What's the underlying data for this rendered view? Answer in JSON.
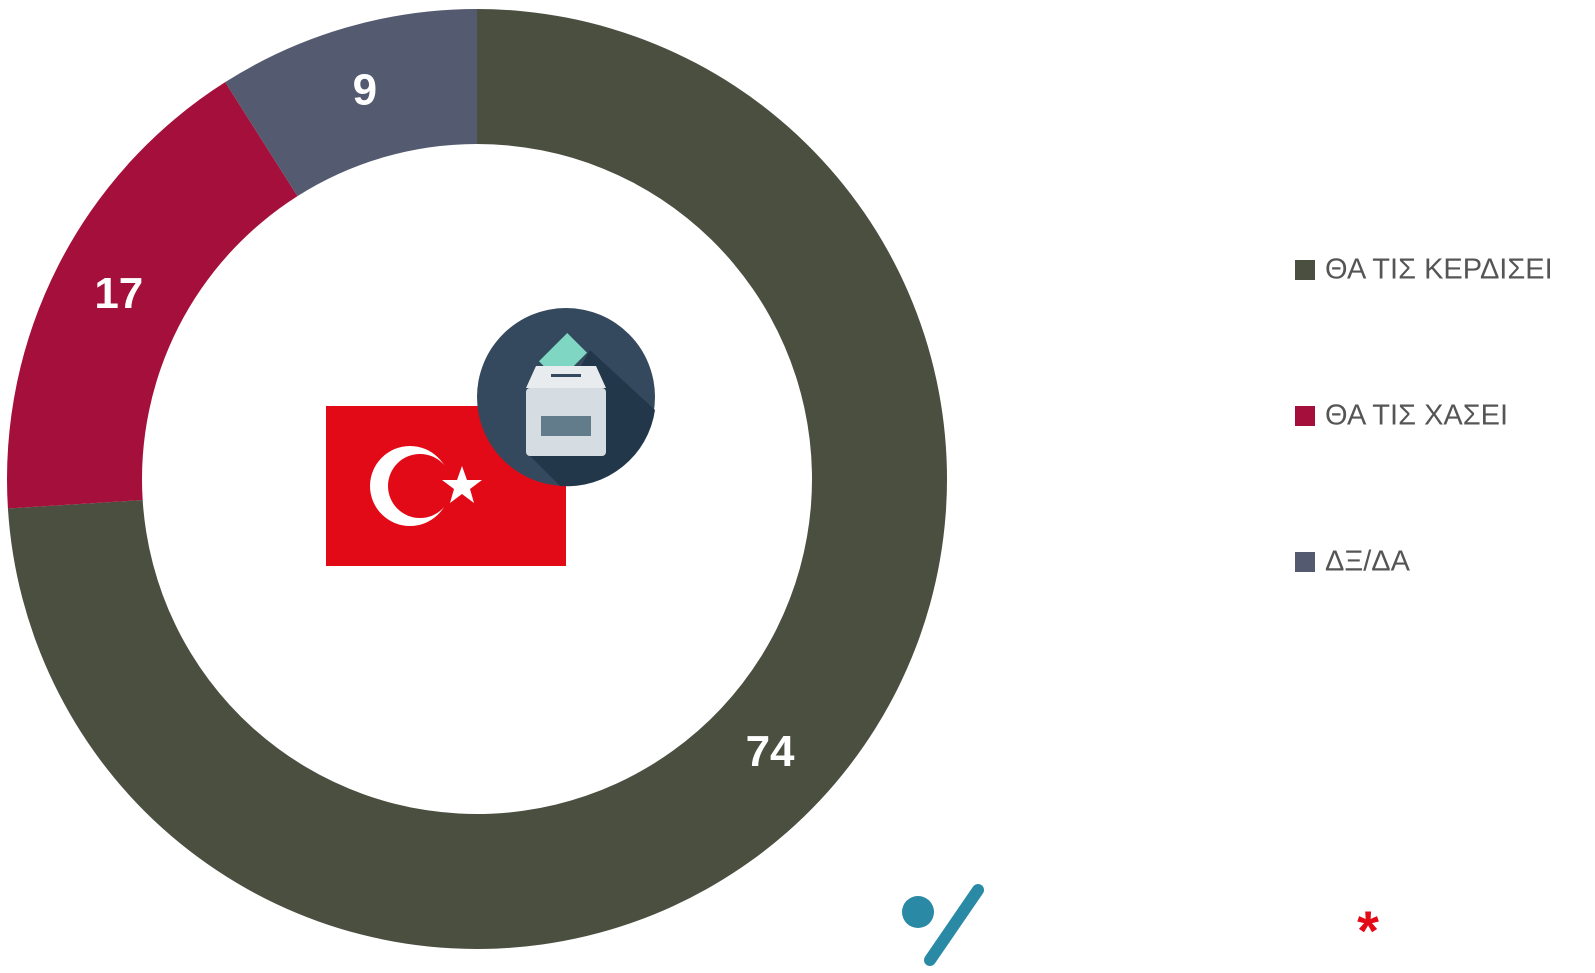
{
  "chart_data": {
    "type": "donut",
    "categories": [
      "ΘΑ ΤΙΣ ΚΕΡΔΙΣΕΙ",
      "ΘΑ ΤΙΣ ΧΑΣΕΙ",
      "ΔΞ/ΔΑ"
    ],
    "values": [
      74,
      17,
      9
    ],
    "colors": [
      "#4a4f40",
      "#a50f3b",
      "#545a70"
    ],
    "legend": "right"
  }
}
